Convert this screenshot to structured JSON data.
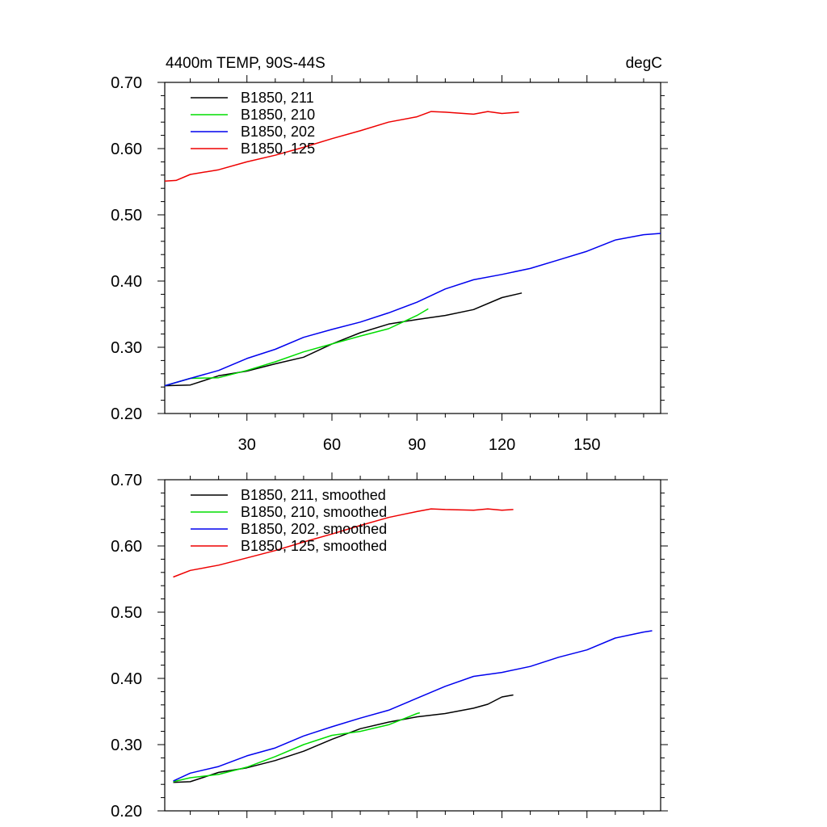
{
  "chart_data": [
    {
      "type": "line",
      "title": "4400m TEMP, 90S-44S",
      "units": "degC",
      "xlabel": "",
      "ylabel": "",
      "xlim": [
        1,
        176
      ],
      "ylim": [
        0.2,
        0.7
      ],
      "xticks": [
        30,
        60,
        90,
        120,
        150
      ],
      "xtick_labels": [
        "30",
        "60",
        "90",
        "120",
        "150"
      ],
      "yticks": [
        0.2,
        0.3,
        0.4,
        0.5,
        0.6,
        0.7
      ],
      "ytick_labels": [
        "0.20",
        "0.30",
        "0.40",
        "0.50",
        "0.60",
        "0.70"
      ],
      "grid": false,
      "legend_position": "top-left",
      "series": [
        {
          "name": "B1850, 211",
          "color": "#000000",
          "x": [
            1,
            10,
            20,
            30,
            40,
            50,
            60,
            70,
            80,
            90,
            100,
            110,
            120,
            127
          ],
          "values": [
            0.242,
            0.243,
            0.257,
            0.264,
            0.275,
            0.285,
            0.305,
            0.322,
            0.335,
            0.342,
            0.348,
            0.357,
            0.375,
            0.382
          ]
        },
        {
          "name": "B1850, 210",
          "color": "#00dd00",
          "x": [
            1,
            10,
            20,
            30,
            40,
            50,
            60,
            70,
            80,
            90,
            94
          ],
          "values": [
            0.242,
            0.253,
            0.254,
            0.265,
            0.278,
            0.293,
            0.305,
            0.317,
            0.328,
            0.348,
            0.358
          ]
        },
        {
          "name": "B1850, 202",
          "color": "#0000ee",
          "x": [
            1,
            10,
            20,
            30,
            40,
            50,
            60,
            70,
            80,
            90,
            100,
            110,
            120,
            130,
            140,
            150,
            160,
            170,
            176
          ],
          "values": [
            0.242,
            0.253,
            0.265,
            0.283,
            0.297,
            0.315,
            0.327,
            0.338,
            0.352,
            0.368,
            0.388,
            0.402,
            0.41,
            0.419,
            0.432,
            0.445,
            0.462,
            0.47,
            0.472
          ]
        },
        {
          "name": "B1850, 125",
          "color": "#ee0000",
          "x": [
            1,
            5,
            10,
            20,
            30,
            40,
            50,
            60,
            70,
            80,
            90,
            95,
            100,
            110,
            115,
            120,
            126
          ],
          "values": [
            0.551,
            0.552,
            0.561,
            0.568,
            0.58,
            0.59,
            0.602,
            0.615,
            0.627,
            0.64,
            0.648,
            0.656,
            0.655,
            0.652,
            0.656,
            0.653,
            0.655
          ]
        }
      ]
    },
    {
      "type": "line",
      "title": "",
      "xlabel": "",
      "ylabel": "",
      "xlim": [
        1,
        176
      ],
      "ylim": [
        0.2,
        0.7
      ],
      "xticks": [
        30,
        60,
        90,
        120,
        150
      ],
      "xtick_labels": [],
      "yticks": [
        0.2,
        0.3,
        0.4,
        0.5,
        0.6,
        0.7
      ],
      "ytick_labels": [
        "0.20",
        "0.30",
        "0.40",
        "0.50",
        "0.60",
        "0.70"
      ],
      "grid": false,
      "legend_position": "top-left",
      "series": [
        {
          "name": "B1850, 211, smoothed",
          "color": "#000000",
          "x": [
            4,
            10,
            20,
            30,
            40,
            50,
            60,
            70,
            80,
            90,
            100,
            110,
            115,
            120,
            124
          ],
          "values": [
            0.243,
            0.244,
            0.258,
            0.265,
            0.276,
            0.29,
            0.308,
            0.324,
            0.334,
            0.342,
            0.347,
            0.355,
            0.361,
            0.372,
            0.375
          ]
        },
        {
          "name": "B1850, 210, smoothed",
          "color": "#00dd00",
          "x": [
            4,
            10,
            20,
            30,
            40,
            50,
            60,
            70,
            80,
            90,
            91
          ],
          "values": [
            0.244,
            0.25,
            0.255,
            0.266,
            0.282,
            0.3,
            0.314,
            0.32,
            0.33,
            0.347,
            0.348
          ]
        },
        {
          "name": "B1850, 202, smoothed",
          "color": "#0000ee",
          "x": [
            4,
            10,
            20,
            30,
            40,
            50,
            60,
            70,
            80,
            90,
            100,
            110,
            120,
            130,
            140,
            150,
            160,
            170,
            173
          ],
          "values": [
            0.245,
            0.257,
            0.267,
            0.283,
            0.295,
            0.313,
            0.327,
            0.34,
            0.352,
            0.37,
            0.388,
            0.403,
            0.409,
            0.418,
            0.432,
            0.443,
            0.461,
            0.47,
            0.472
          ]
        },
        {
          "name": "B1850, 125, smoothed",
          "color": "#ee0000",
          "x": [
            4,
            10,
            20,
            30,
            40,
            50,
            60,
            70,
            80,
            90,
            95,
            100,
            110,
            115,
            120,
            124
          ],
          "values": [
            0.553,
            0.563,
            0.571,
            0.582,
            0.593,
            0.606,
            0.618,
            0.631,
            0.643,
            0.652,
            0.656,
            0.655,
            0.654,
            0.656,
            0.654,
            0.655
          ]
        }
      ]
    }
  ]
}
